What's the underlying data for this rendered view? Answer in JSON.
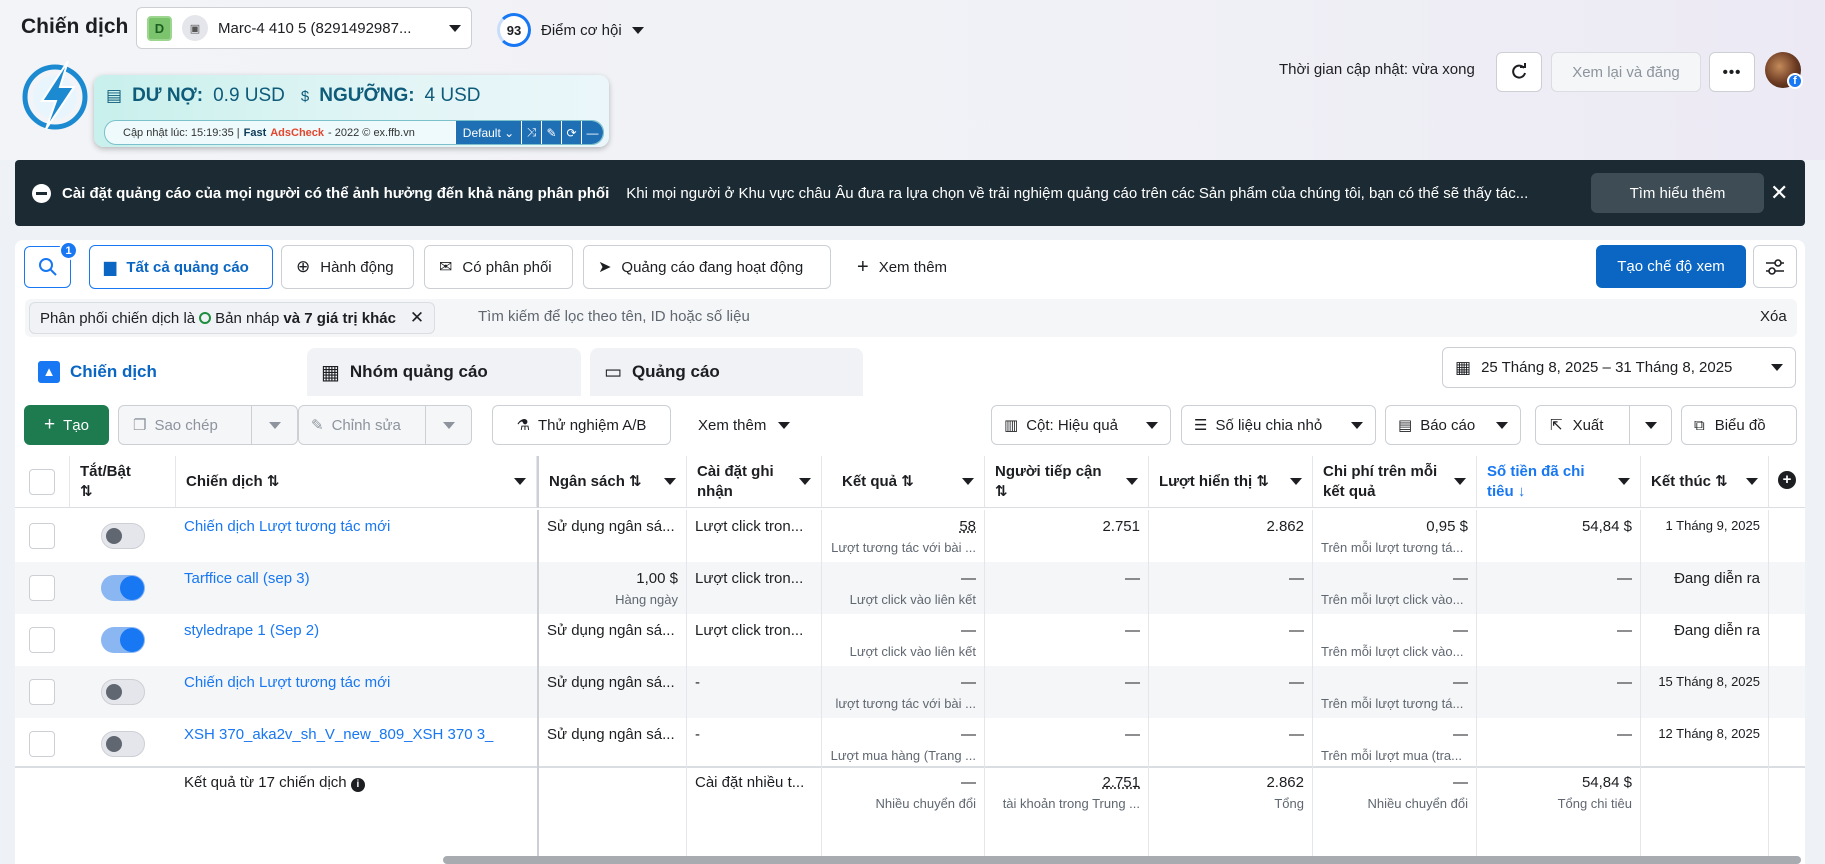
{
  "header": {
    "title": "Chiến dịch",
    "account_initial": "D",
    "account_name": "Marc-4 410 5 (8291492987...",
    "score": "93",
    "score_label": "Điểm cơ hội",
    "update_time": "Thời gian cập nhật: vừa xong",
    "review_button": "Xem lại và đăng",
    "more_button": "•••"
  },
  "extension": {
    "debt_label": "DƯ NỢ:",
    "debt_value": "0.9 USD",
    "threshold_label": "NGƯỠNG:",
    "threshold_value": "4 USD",
    "updated_prefix": "Cập nhật lúc: 15:19:35 |",
    "fast": "Fast",
    "adscheck": "AdsCheck",
    "suffix": "- 2022 © ex.ffb.vn",
    "mode": "Default"
  },
  "banner": {
    "title": "Cài đặt quảng cáo của mọi người có thể ảnh hưởng đến khả năng phân phối",
    "body": "Khi mọi người ở Khu vực châu Âu đưa ra lựa chọn về trải nghiệm quảng cáo trên các Sản phẩm của chúng tôi, bạn có thể sẽ thấy tác...",
    "learn_more": "Tìm hiểu thêm",
    "close": "✕"
  },
  "toolbar": {
    "search_badge": "1",
    "all_ads": "Tất cả quảng cáo",
    "actions": "Hành động",
    "delivering": "Có phân phối",
    "active_ads": "Quảng cáo đang hoạt động",
    "see_more": "Xem thêm",
    "create_view": "Tạo chế độ xem"
  },
  "filter": {
    "chip_prefix": "Phân phối chiến dịch là",
    "chip_value": "Bản nháp",
    "chip_more": "và 7 giá trị khác",
    "placeholder": "Tìm kiếm để lọc theo tên, ID hoặc số liệu",
    "clear": "Xóa"
  },
  "tabs": [
    "Chiến dịch",
    "Nhóm quảng cáo",
    "Quảng cáo"
  ],
  "date_range": "25 Tháng 8, 2025 – 31 Tháng 8, 2025",
  "actions_bar": {
    "create": "Tạo",
    "copy": "Sao chép",
    "edit": "Chỉnh sửa",
    "ab_test": "Thử nghiệm A/B",
    "see_more": "Xem thêm",
    "columns": "Cột: Hiệu quả",
    "breakdown": "Số liệu chia nhỏ",
    "report": "Báo cáo",
    "export": "Xuất",
    "chart": "Biểu đồ"
  },
  "columns": {
    "toggle": "Tắt/Bật",
    "campaign": "Chiến dịch",
    "budget": "Ngân sách",
    "attribution_1": "Cài đặt ghi",
    "attribution_2": "nhận",
    "results": "Kết quả",
    "reach": "Người tiếp cận",
    "impressions": "Lượt hiển thị",
    "cpr_1": "Chi phí trên mỗi",
    "cpr_2": "kết quả",
    "spent_1": "Số tiền đã chi",
    "spent_2": "tiêu",
    "ends": "Kết thúc"
  },
  "rows": [
    {
      "toggle": "off",
      "name": "Chiến dịch Lượt tương tác mới",
      "budget": "Sử dụng ngân sá...",
      "budget_sub": "",
      "attribution": "Lượt click tron...",
      "results": "58",
      "results_sub": "Lượt tương tác với bài ...",
      "reach": "2.751",
      "impressions": "2.862",
      "cpr": "0,95 $",
      "cpr_sub": "Trên mỗi lượt tương tá...",
      "spent": "54,84 $",
      "ends": "1 Tháng 9, 2025"
    },
    {
      "toggle": "on",
      "name": "Tarffice call (sep 3)",
      "budget": "1,00 $",
      "budget_sub": "Hàng ngày",
      "attribution": "Lượt click tron...",
      "results": "—",
      "results_sub": "Lượt click vào liên kết",
      "reach": "—",
      "impressions": "—",
      "cpr": "—",
      "cpr_sub": "Trên mỗi lượt click vào...",
      "spent": "—",
      "ends": "Đang diễn ra"
    },
    {
      "toggle": "on",
      "name": "styledrape 1 (Sep 2)",
      "budget": "Sử dụng ngân sá...",
      "budget_sub": "",
      "attribution": "Lượt click tron...",
      "results": "—",
      "results_sub": "Lượt click vào liên kết",
      "reach": "—",
      "impressions": "—",
      "cpr": "—",
      "cpr_sub": "Trên mỗi lượt click vào...",
      "spent": "—",
      "ends": "Đang diễn ra"
    },
    {
      "toggle": "off",
      "name": "Chiến dịch Lượt tương tác mới",
      "budget": "Sử dụng ngân sá...",
      "budget_sub": "",
      "attribution": "-",
      "results": "—",
      "results_sub": "lượt tương tác với bài ...",
      "reach": "—",
      "impressions": "—",
      "cpr": "—",
      "cpr_sub": "Trên mỗi lượt tương tá...",
      "spent": "—",
      "ends": "15 Tháng 8, 2025"
    },
    {
      "toggle": "off",
      "name": "XSH 370_aka2v_sh_V_new_809_XSH 370 3_",
      "budget": "Sử dụng ngân sá...",
      "budget_sub": "",
      "attribution": "-",
      "results": "—",
      "results_sub": "Lượt mua hàng (Trang ...",
      "reach": "—",
      "impressions": "—",
      "cpr": "—",
      "cpr_sub": "Trên mỗi lượt mua (tra...",
      "spent": "—",
      "ends": "12 Tháng 8, 2025"
    }
  ],
  "totals": {
    "label": "Kết quả từ 17 chiến dịch",
    "attribution": "Cài đặt nhiều t...",
    "results": "—",
    "results_sub": "Nhiều chuyển đổi",
    "reach": "2.751",
    "reach_sub": "tài khoản trong Trung ...",
    "impressions": "2.862",
    "impressions_sub": "Tổng",
    "cpr": "—",
    "cpr_sub": "Nhiều chuyển đổi",
    "spent": "54,84 $",
    "spent_sub": "Tổng chi tiêu"
  }
}
